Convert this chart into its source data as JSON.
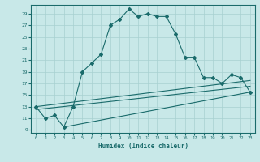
{
  "xlabel": "Humidex (Indice chaleur)",
  "ylabel": "",
  "bg_color": "#c8e8e8",
  "grid_color": "#a8d0d0",
  "line_color": "#1a6b6b",
  "xlim": [
    -0.5,
    23.5
  ],
  "ylim": [
    8.5,
    30.5
  ],
  "xticks": [
    0,
    1,
    2,
    3,
    4,
    5,
    6,
    7,
    8,
    9,
    10,
    11,
    12,
    13,
    14,
    15,
    16,
    17,
    18,
    19,
    20,
    21,
    22,
    23
  ],
  "yticks": [
    9,
    11,
    13,
    15,
    17,
    19,
    21,
    23,
    25,
    27,
    29
  ],
  "curve1_x": [
    0,
    1,
    2,
    3,
    4,
    5,
    6,
    7,
    8,
    9,
    10,
    11,
    12,
    13,
    14,
    15,
    16,
    17,
    18,
    19,
    20,
    21,
    22,
    23
  ],
  "curve1_y": [
    13,
    11,
    11.5,
    9.5,
    13,
    19,
    20.5,
    22,
    27,
    28,
    29.8,
    28.5,
    29,
    28.5,
    28.5,
    25.5,
    21.5,
    21.5,
    18,
    18,
    17,
    18.5,
    18,
    15.5
  ],
  "line2_x": [
    0,
    23
  ],
  "line2_y": [
    13.0,
    17.5
  ],
  "line3_x": [
    0,
    23
  ],
  "line3_y": [
    12.5,
    16.5
  ],
  "line4_x": [
    3,
    23
  ],
  "line4_y": [
    9.5,
    15.5
  ]
}
